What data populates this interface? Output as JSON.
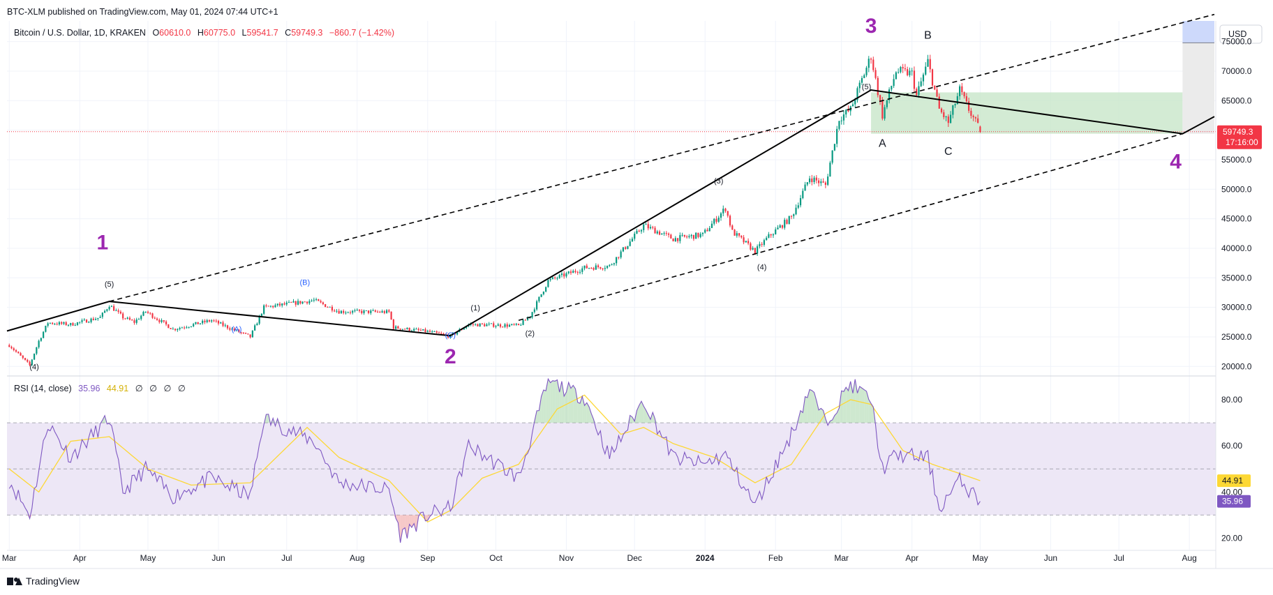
{
  "header": {
    "publisher_line": "BTC-XLM published on TradingView.com, May 01, 2024 07:44 UTC+1"
  },
  "legend": {
    "symbol": "Bitcoin / U.S. Dollar, 1D, KRAKEN",
    "o_label": "O",
    "o_value": "60610.0",
    "h_label": "H",
    "h_value": "60775.0",
    "l_label": "L",
    "l_value": "59541.7",
    "c_label": "C",
    "c_value": "59749.3",
    "change": "−860.7 (−1.42%)"
  },
  "price_axis": {
    "currency_button": "USD",
    "last_price": "59749.3",
    "countdown": "17:16:00"
  },
  "rsi": {
    "legend_name": "RSI (14, close)",
    "value": "35.96",
    "ma_value": "44.91",
    "extra_values": [
      "∅",
      "∅",
      "∅",
      "∅"
    ]
  },
  "footer": {
    "brand": "TradingView"
  },
  "colors": {
    "bull": "#089981",
    "bear": "#f23645",
    "rsi_line": "#7e57c2",
    "rsi_ma": "#fdd835",
    "rsi_band": "#ede7f6",
    "wave_major": "#9c27b0",
    "wave_minor": "#131722",
    "wave_sub": "#2962ff",
    "target_box": "#c8e6c9",
    "text": "#131722",
    "axis_text": "#131722",
    "grid": "#f0f3fa"
  },
  "chart_data": [
    {
      "type": "candlestick",
      "title": "Bitcoin / U.S. Dollar, 1D, KRAKEN",
      "x_axis": {
        "type": "date",
        "tick_labels": [
          "Mar",
          "Apr",
          "May",
          "Jun",
          "Jul",
          "Aug",
          "Sep",
          "Oct",
          "Nov",
          "Dec",
          "2024",
          "Feb",
          "Mar",
          "Apr",
          "May",
          "Jun",
          "Jul",
          "Aug"
        ],
        "tick_dates": [
          "2023-03-01",
          "2023-04-01",
          "2023-05-01",
          "2023-06-01",
          "2023-07-01",
          "2023-08-01",
          "2023-09-01",
          "2023-10-01",
          "2023-11-01",
          "2023-12-01",
          "2024-01-01",
          "2024-02-01",
          "2024-03-01",
          "2024-04-01",
          "2024-05-01",
          "2024-06-01",
          "2024-07-01",
          "2024-08-01"
        ],
        "range": [
          "2023-02-28",
          "2024-08-12"
        ]
      },
      "y_axis": {
        "ylim": [
          18500,
          78500
        ],
        "tick_values": [
          20000,
          25000,
          30000,
          35000,
          40000,
          45000,
          50000,
          55000,
          60000,
          65000,
          70000,
          75000
        ],
        "tick_labels": [
          "20000.0",
          "25000.0",
          "30000.0",
          "35000.0",
          "40000.0",
          "45000.0",
          "50000.0",
          "55000.0",
          "60000.0",
          "65000.0",
          "70000.0",
          "75000.0"
        ]
      },
      "price_path_keypoints": [
        [
          "2023-03-01",
          23600
        ],
        [
          "2023-03-10",
          20200
        ],
        [
          "2023-03-14",
          24300
        ],
        [
          "2023-03-18",
          27400
        ],
        [
          "2023-03-28",
          27100
        ],
        [
          "2023-04-10",
          28300
        ],
        [
          "2023-04-14",
          30400
        ],
        [
          "2023-04-20",
          28300
        ],
        [
          "2023-04-25",
          27500
        ],
        [
          "2023-04-30",
          29300
        ],
        [
          "2023-05-12",
          26300
        ],
        [
          "2023-05-29",
          27800
        ],
        [
          "2023-06-15",
          25000
        ],
        [
          "2023-06-21",
          30000
        ],
        [
          "2023-07-13",
          31200
        ],
        [
          "2023-07-24",
          29300
        ],
        [
          "2023-08-15",
          29200
        ],
        [
          "2023-08-17",
          26600
        ],
        [
          "2023-09-01",
          25900
        ],
        [
          "2023-09-11",
          25100
        ],
        [
          "2023-09-19",
          27100
        ],
        [
          "2023-10-11",
          26900
        ],
        [
          "2023-10-16",
          28500
        ],
        [
          "2023-10-24",
          34500
        ],
        [
          "2023-11-09",
          36700
        ],
        [
          "2023-11-20",
          37000
        ],
        [
          "2023-12-05",
          43900
        ],
        [
          "2023-12-18",
          41600
        ],
        [
          "2023-12-31",
          42300
        ],
        [
          "2024-01-10",
          46800
        ],
        [
          "2024-01-13",
          42800
        ],
        [
          "2024-01-23",
          39500
        ],
        [
          "2024-01-29",
          42000
        ],
        [
          "2024-02-08",
          45300
        ],
        [
          "2024-02-16",
          52000
        ],
        [
          "2024-02-23",
          50700
        ],
        [
          "2024-02-29",
          62000
        ],
        [
          "2024-03-05",
          63500
        ],
        [
          "2024-03-14",
          72600
        ],
        [
          "2024-03-19",
          62500
        ],
        [
          "2024-03-25",
          70000
        ],
        [
          "2024-04-01",
          69600
        ],
        [
          "2024-04-03",
          65800
        ],
        [
          "2024-04-08",
          71600
        ],
        [
          "2024-04-13",
          63500
        ],
        [
          "2024-04-17",
          61300
        ],
        [
          "2024-04-22",
          66800
        ],
        [
          "2024-04-26",
          63500
        ],
        [
          "2024-04-30",
          60600
        ],
        [
          "2024-05-01",
          59749.3
        ]
      ],
      "last": {
        "date": "2024-05-01",
        "open": 60610.0,
        "high": 60775.0,
        "low": 59541.7,
        "close": 59749.3
      },
      "annotations": {
        "waves": [
          {
            "label": "1",
            "level": "major",
            "date": "2023-04-11",
            "price": 39800
          },
          {
            "label": "2",
            "level": "major",
            "date": "2023-09-11",
            "price": 20500
          },
          {
            "label": "3",
            "level": "major",
            "date": "2024-03-14",
            "price": 76500
          },
          {
            "label": "4",
            "level": "major",
            "date": "2024-07-26",
            "price": 53500
          },
          {
            "label": "(4)",
            "level": "minor",
            "date": "2023-03-12",
            "price": 19500
          },
          {
            "label": "(5)",
            "level": "minor",
            "date": "2023-04-14",
            "price": 33500
          },
          {
            "label": "(1)",
            "level": "minor",
            "date": "2023-09-22",
            "price": 29500
          },
          {
            "label": "(2)",
            "level": "minor",
            "date": "2023-10-16",
            "price": 25200
          },
          {
            "label": "(3)",
            "level": "minor",
            "date": "2024-01-07",
            "price": 51000
          },
          {
            "label": "(4)",
            "level": "minor",
            "date": "2024-01-26",
            "price": 36400
          },
          {
            "label": "(5)",
            "level": "minor",
            "date": "2024-03-12",
            "price": 66900
          },
          {
            "label": "(A)",
            "level": "sub",
            "date": "2023-06-09",
            "price": 25900
          },
          {
            "label": "(B)",
            "level": "sub",
            "date": "2023-07-09",
            "price": 33800
          },
          {
            "label": "(C)",
            "level": "sub",
            "date": "2023-09-11",
            "price": 24900
          },
          {
            "label": "A",
            "level": "minor",
            "date": "2024-03-19",
            "price": 57200
          },
          {
            "label": "B",
            "level": "minor",
            "date": "2024-04-08",
            "price": 75500
          },
          {
            "label": "C",
            "level": "minor",
            "date": "2024-04-17",
            "price": 55800
          }
        ],
        "solid_lines": [
          [
            [
              "2023-02-28",
              26000
            ],
            [
              "2023-04-14",
              31000
            ],
            [
              "2023-09-11",
              25200
            ],
            [
              "2024-03-14",
              66800
            ],
            [
              "2024-07-29",
              59400
            ],
            [
              "2024-08-12",
              62300
            ]
          ]
        ],
        "dashed_lines": [
          [
            [
              "2023-04-14",
              31000
            ],
            [
              "2024-08-12",
              79600
            ]
          ],
          [
            [
              "2023-10-11",
              27800
            ],
            [
              "2024-07-29",
              59400
            ]
          ]
        ],
        "target_box": {
          "from": "2024-03-14",
          "to": "2024-07-29",
          "low": 59400,
          "high": 66400
        },
        "last_price_line": 59749.3,
        "forecast_box": {
          "from": "2024-07-29",
          "to": "2024-08-12",
          "low": 59400,
          "split": 74800,
          "high": 78500
        }
      }
    },
    {
      "type": "line",
      "title": "RSI (14, close)",
      "y_axis": {
        "ylim": [
          15,
          90
        ],
        "tick_values": [
          20,
          40,
          60,
          80
        ],
        "tick_labels": [
          "20.00",
          "40.00",
          "60.00",
          "80.00"
        ]
      },
      "bands": {
        "upper": 70,
        "middle": 50,
        "lower": 30
      },
      "series": [
        {
          "name": "RSI (14, close)",
          "keypoints": [
            [
              "2023-03-01",
              45
            ],
            [
              "2023-03-10",
              30
            ],
            [
              "2023-03-18",
              70
            ],
            [
              "2023-03-28",
              55
            ],
            [
              "2023-04-14",
              72
            ],
            [
              "2023-04-20",
              40
            ],
            [
              "2023-04-30",
              50
            ],
            [
              "2023-05-12",
              38
            ],
            [
              "2023-05-29",
              46
            ],
            [
              "2023-06-15",
              38
            ],
            [
              "2023-06-21",
              72
            ],
            [
              "2023-07-13",
              62
            ],
            [
              "2023-07-24",
              44
            ],
            [
              "2023-08-15",
              41
            ],
            [
              "2023-08-20",
              21
            ],
            [
              "2023-09-01",
              30
            ],
            [
              "2023-09-11",
              33
            ],
            [
              "2023-09-19",
              60
            ],
            [
              "2023-10-11",
              46
            ],
            [
              "2023-10-24",
              88
            ],
            [
              "2023-11-09",
              81
            ],
            [
              "2023-11-20",
              55
            ],
            [
              "2023-12-05",
              80
            ],
            [
              "2023-12-18",
              55
            ],
            [
              "2023-12-31",
              52
            ],
            [
              "2024-01-10",
              56
            ],
            [
              "2024-01-23",
              34
            ],
            [
              "2024-02-08",
              65
            ],
            [
              "2024-02-16",
              85
            ],
            [
              "2024-02-23",
              70
            ],
            [
              "2024-03-05",
              87
            ],
            [
              "2024-03-14",
              80
            ],
            [
              "2024-03-19",
              50
            ],
            [
              "2024-03-25",
              56
            ],
            [
              "2024-04-08",
              55
            ],
            [
              "2024-04-13",
              33
            ],
            [
              "2024-04-22",
              45
            ],
            [
              "2024-05-01",
              35.96
            ]
          ]
        },
        {
          "name": "RSI-based MA",
          "keypoints": [
            [
              "2023-03-01",
              50
            ],
            [
              "2023-03-14",
              40
            ],
            [
              "2023-03-28",
              62
            ],
            [
              "2023-04-14",
              64
            ],
            [
              "2023-05-01",
              50
            ],
            [
              "2023-05-20",
              43
            ],
            [
              "2023-06-15",
              44
            ],
            [
              "2023-07-10",
              68
            ],
            [
              "2023-07-24",
              55
            ],
            [
              "2023-08-15",
              45
            ],
            [
              "2023-09-01",
              27
            ],
            [
              "2023-09-11",
              32
            ],
            [
              "2023-09-25",
              46
            ],
            [
              "2023-10-11",
              52
            ],
            [
              "2023-10-28",
              76
            ],
            [
              "2023-11-09",
              82
            ],
            [
              "2023-11-25",
              65
            ],
            [
              "2023-12-05",
              68
            ],
            [
              "2023-12-18",
              61
            ],
            [
              "2024-01-05",
              55
            ],
            [
              "2024-01-23",
              44
            ],
            [
              "2024-02-08",
              52
            ],
            [
              "2024-02-23",
              74
            ],
            [
              "2024-03-05",
              80
            ],
            [
              "2024-03-14",
              78
            ],
            [
              "2024-03-28",
              58
            ],
            [
              "2024-04-10",
              52
            ],
            [
              "2024-04-25",
              47
            ],
            [
              "2024-05-01",
              44.91
            ]
          ]
        }
      ]
    }
  ]
}
